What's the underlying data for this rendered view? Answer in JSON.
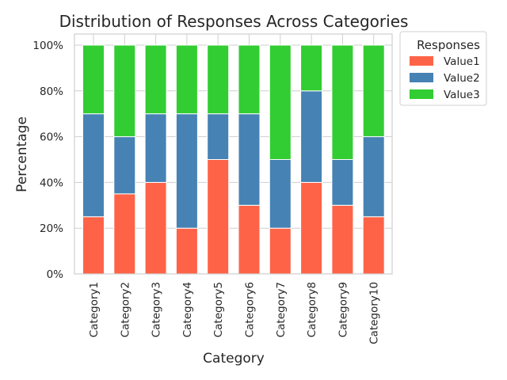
{
  "chart_data": {
    "type": "bar",
    "stacked": true,
    "title": "Distribution of Responses Across Categories",
    "xlabel": "Category",
    "ylabel": "Percentage",
    "ylim": [
      0,
      100
    ],
    "ytick_values": [
      0,
      20,
      40,
      60,
      80,
      100
    ],
    "ytick_labels": [
      "0%",
      "20%",
      "40%",
      "60%",
      "80%",
      "100%"
    ],
    "grid": true,
    "legend": {
      "title": "Responses",
      "placement": "outside-top-right"
    },
    "categories": [
      "Category1",
      "Category2",
      "Category3",
      "Category4",
      "Category5",
      "Category6",
      "Category7",
      "Category8",
      "Category9",
      "Category10"
    ],
    "series": [
      {
        "name": "Value1",
        "color": "#ff6347",
        "values": [
          25,
          35,
          40,
          20,
          50,
          30,
          20,
          40,
          30,
          25
        ]
      },
      {
        "name": "Value2",
        "color": "#4682b4",
        "values": [
          45,
          25,
          30,
          50,
          20,
          40,
          30,
          40,
          20,
          35
        ]
      },
      {
        "name": "Value3",
        "color": "#32cd32",
        "values": [
          30,
          40,
          30,
          30,
          30,
          30,
          50,
          20,
          50,
          40
        ]
      }
    ]
  }
}
